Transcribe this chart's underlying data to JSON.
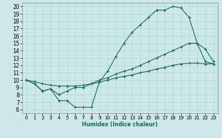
{
  "xlabel": "Humidex (Indice chaleur)",
  "xlim": [
    -0.5,
    23.5
  ],
  "ylim": [
    5.5,
    20.5
  ],
  "xticks": [
    0,
    1,
    2,
    3,
    4,
    5,
    6,
    7,
    8,
    9,
    10,
    11,
    12,
    13,
    14,
    15,
    16,
    17,
    18,
    19,
    20,
    21,
    22,
    23
  ],
  "yticks": [
    6,
    7,
    8,
    9,
    10,
    11,
    12,
    13,
    14,
    15,
    16,
    17,
    18,
    19,
    20
  ],
  "bg_color": "#cce8e8",
  "grid_color": "#b8d8d8",
  "line_color": "#1a6b5a",
  "line1_x": [
    0,
    1,
    2,
    3,
    4,
    5,
    6,
    7,
    8,
    9,
    10,
    11,
    12,
    13,
    14,
    15,
    16,
    17,
    18,
    19,
    20,
    21,
    22,
    23
  ],
  "line1_y": [
    10.0,
    9.5,
    8.5,
    8.8,
    7.2,
    7.2,
    6.3,
    6.3,
    6.3,
    9.8,
    11.2,
    13.2,
    15.0,
    16.5,
    17.5,
    18.5,
    19.5,
    19.5,
    20.0,
    19.8,
    18.5,
    15.0,
    14.2,
    12.5
  ],
  "line2_x": [
    0,
    1,
    2,
    3,
    4,
    5,
    6,
    7,
    8,
    9,
    10,
    11,
    12,
    13,
    14,
    15,
    16,
    17,
    18,
    19,
    20,
    21,
    22,
    23
  ],
  "line2_y": [
    10.0,
    9.5,
    8.5,
    8.8,
    8.0,
    8.5,
    9.0,
    9.0,
    9.5,
    10.0,
    10.3,
    10.8,
    11.2,
    11.5,
    12.0,
    12.5,
    13.0,
    13.5,
    14.0,
    14.5,
    15.0,
    15.0,
    12.5,
    12.2
  ],
  "line3_x": [
    0,
    1,
    2,
    3,
    4,
    5,
    6,
    7,
    8,
    9,
    10,
    11,
    12,
    13,
    14,
    15,
    16,
    17,
    18,
    19,
    20,
    21,
    22,
    23
  ],
  "line3_y": [
    10.0,
    9.8,
    9.5,
    9.3,
    9.2,
    9.2,
    9.2,
    9.3,
    9.5,
    9.7,
    10.0,
    10.3,
    10.5,
    10.7,
    11.0,
    11.2,
    11.5,
    11.7,
    12.0,
    12.2,
    12.3,
    12.3,
    12.2,
    12.2
  ]
}
